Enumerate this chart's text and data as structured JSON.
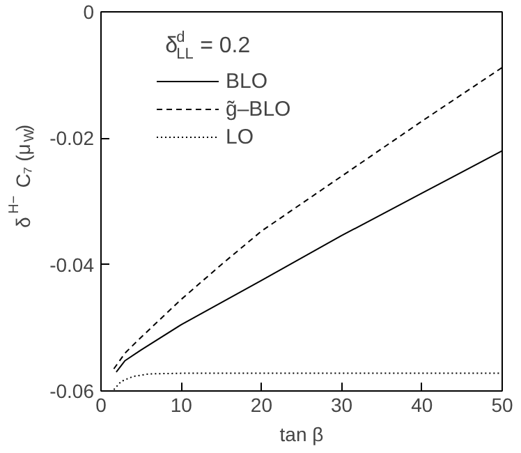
{
  "chart_data": {
    "type": "line",
    "xlabel": "tan β",
    "ylabel": "δ$^{H−}$ C₇ (μ$_{W}$)",
    "legend_title": "δ$^{d}$$_{LL}$ = 0.2",
    "xlim": [
      0,
      50
    ],
    "ylim": [
      -0.06,
      0
    ],
    "xticks": [
      0,
      10,
      20,
      30,
      40,
      50
    ],
    "yticks": [
      0,
      -0.02,
      -0.04,
      -0.06
    ],
    "grid": false,
    "legend": "top left",
    "series": [
      {
        "name": "BLO",
        "color": "#000000",
        "line_style": "solid",
        "x": [
          1.9,
          3,
          5,
          10,
          20,
          30,
          40,
          50
        ],
        "values": [
          -0.057,
          -0.0552,
          -0.0535,
          -0.0495,
          -0.0425,
          -0.0354,
          -0.0287,
          -0.022
        ]
      },
      {
        "name": "g̃–BLO",
        "color": "#000000",
        "line_style": "dashed",
        "x": [
          1.6,
          3,
          5,
          10,
          15,
          20,
          30,
          40,
          50
        ],
        "values": [
          -0.0565,
          -0.054,
          -0.0515,
          -0.0455,
          -0.04,
          -0.0347,
          -0.026,
          -0.0173,
          -0.0088
        ]
      },
      {
        "name": "LO",
        "color": "#000000",
        "line_style": "dotted",
        "x": [
          1.6,
          2.5,
          4,
          6,
          10,
          50
        ],
        "values": [
          -0.0598,
          -0.0585,
          -0.0577,
          -0.0573,
          -0.0572,
          -0.0572
        ]
      }
    ]
  }
}
